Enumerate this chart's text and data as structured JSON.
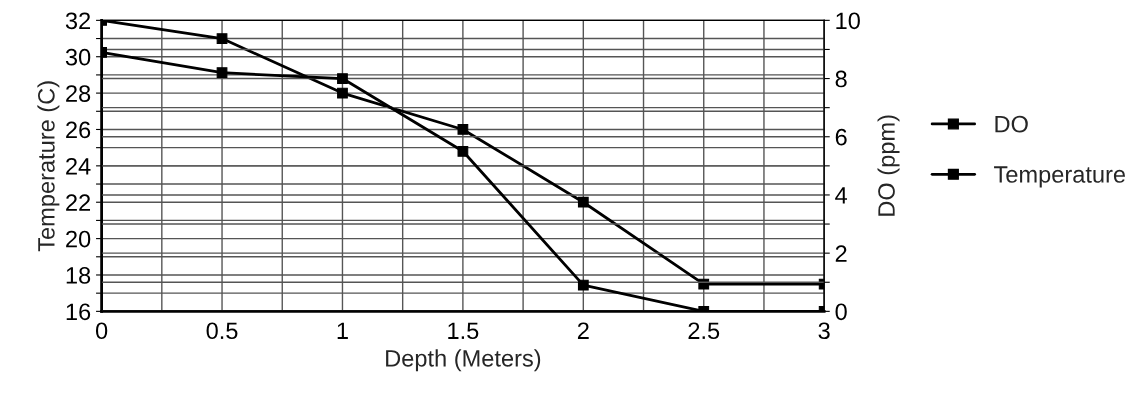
{
  "chart_data": {
    "type": "line",
    "xlabel": "Depth (Meters)",
    "ylabel": "Temperature (C)",
    "y2label": "DO (ppm)",
    "x": [
      0,
      0.5,
      1,
      1.5,
      2,
      2.5,
      3
    ],
    "series": [
      {
        "name": "DO",
        "color": "#000000",
        "axis": "y2",
        "values": [
          8.9,
          8.2,
          8.0,
          5.5,
          0.9,
          0,
          0
        ]
      },
      {
        "name": "Temperature",
        "color": "#000000",
        "values": [
          32,
          31,
          28,
          26,
          22,
          17.5,
          17.5
        ]
      }
    ],
    "xlim": [
      0,
      3
    ],
    "xticks": [
      0,
      {
        "value": 0.25,
        "label": null
      },
      0.5,
      {
        "value": 0.75,
        "label": null
      },
      1,
      {
        "value": 1.25,
        "label": null
      },
      1.5,
      {
        "value": 1.75,
        "label": null
      },
      2,
      {
        "value": 2.25,
        "label": null
      },
      2.5,
      {
        "value": 2.75,
        "label": null
      },
      3
    ],
    "ylim": [
      16,
      32
    ],
    "yticks": [
      16,
      {
        "value": 17,
        "label": null
      },
      18,
      {
        "value": 19,
        "label": null
      },
      20,
      {
        "value": 21,
        "label": null
      },
      22,
      {
        "value": 23,
        "label": null
      },
      24,
      {
        "value": 25,
        "label": null
      },
      26,
      {
        "value": 27,
        "label": null
      },
      28,
      {
        "value": 29,
        "label": null
      },
      30,
      {
        "value": 31,
        "label": null
      },
      32
    ],
    "y2lim": [
      0,
      10
    ],
    "y2ticks": [
      0,
      {
        "value": 1,
        "label": null
      },
      2,
      {
        "value": 3,
        "label": null
      },
      4,
      {
        "value": 5,
        "label": null
      },
      6,
      {
        "value": 7,
        "label": null
      },
      8,
      {
        "value": 9,
        "label": null
      },
      10
    ],
    "grid": true,
    "legend": "right",
    "marker": "square",
    "line_style": "solid"
  }
}
